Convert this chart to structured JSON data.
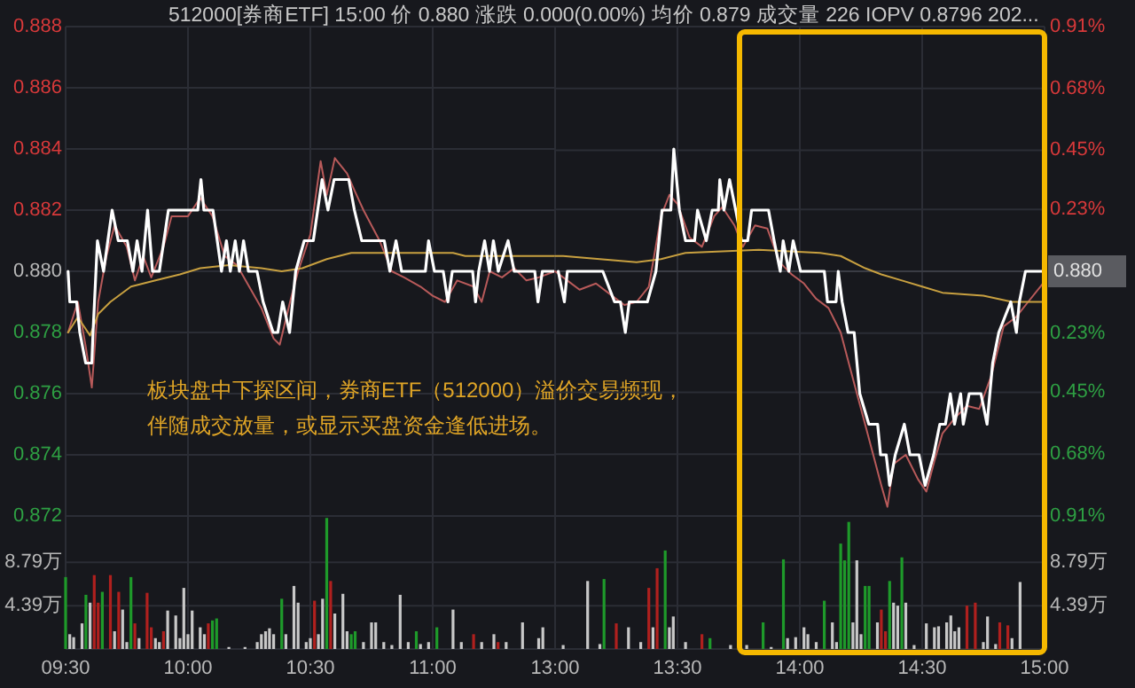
{
  "chart_data": [
    {
      "type": "line",
      "title": "512000[券商ETF] 15:00 价 0.880 涨跌 0.000(0.00%) 均价 0.879 成交量 226 IOPV 0.8796 202...",
      "annotations": [
        "板块盘中下探区间，券商ETF（512000）溢价交易频现，",
        "伴随成交放量，或显示买盘资金逢低进场。"
      ],
      "xlim": [
        9.5,
        11.5
      ],
      "xticks": [
        {
          "value": 9.5,
          "label": null
        },
        {
          "value": 10,
          "label": null
        },
        {
          "value": 10.5,
          "label": null
        },
        {
          "value": 11,
          "label": null
        }
      ],
      "tick_labels": "y",
      "grid": true,
      "ylim": [
        0.872,
        0.888
      ],
      "yticks": [
        0.872,
        0.874,
        0.876,
        0.878,
        {
          "value": 0.88,
          "label": "0.880"
        },
        0.882,
        0.884,
        0.886,
        0.888
      ],
      "series": [
        {
          "color": "#b85a5a",
          "x": [
            9.51,
            9.55,
            9.583,
            9.607,
            9.633,
            9.667,
            9.7,
            9.75,
            9.783,
            9.817,
            9.85,
            9.9,
            9.933,
            10,
            10.05,
            10.1,
            10.15,
            10.2,
            10.25,
            10.3,
            10.35,
            10.375,
            10.417,
            10.45,
            10.5,
            10.542,
            10.567,
            10.6,
            10.65,
            10.683,
            10.717,
            10.783,
            10.833,
            10.883,
            10.95,
            11,
            11.05,
            11.1,
            11.167,
            11.2,
            11.233,
            11.283,
            11.333,
            11.383,
            11.433,
            11.5
          ],
          "values": [
            0.878,
            0.879,
            0.8775,
            0.8762,
            0.879,
            0.8805,
            0.8815,
            0.8808,
            0.8797,
            0.8805,
            0.8798,
            0.8808,
            0.8818,
            0.8818,
            0.8824,
            0.8818,
            0.8805,
            0.8802,
            0.8795,
            0.8788,
            0.8778,
            0.8776,
            0.879,
            0.88,
            0.8812,
            0.8836,
            0.8825,
            0.8837,
            0.8832,
            0.8826,
            0.882,
            0.881,
            0.88,
            0.8798,
            0.8795,
            0.8792,
            0.879,
            0.8797,
            0.8795,
            0.879,
            0.88,
            0.8798,
            0.8801,
            0.8797,
            0.8798,
            0.88
          ]
        },
        {
          "color": "#c8a040",
          "x": [
            9.51,
            9.55,
            9.6,
            9.633,
            9.683,
            9.767,
            9.867,
            9.967,
            10.05,
            10.167,
            10.3,
            10.383,
            10.467,
            10.567,
            10.667,
            11,
            11.083,
            11.133,
            11.5
          ],
          "values": [
            0.878,
            0.8785,
            0.8779,
            0.8786,
            0.879,
            0.8795,
            0.8797,
            0.8799,
            0.8801,
            0.8802,
            0.8801,
            0.88,
            0.8801,
            0.8804,
            0.8806,
            0.8806,
            0.8806,
            0.8805,
            0.8805
          ]
        },
        {
          "color": "#ffffff",
          "x": [
            9.51,
            9.517,
            9.545,
            9.558,
            9.582,
            9.607,
            9.612,
            9.63,
            9.655,
            9.69,
            9.715,
            9.752,
            9.775,
            9.792,
            9.812,
            9.835,
            9.855,
            9.883,
            9.92,
            10.04,
            10.053,
            10.065,
            10.102,
            10.137,
            10.157,
            10.173,
            10.193,
            10.21,
            10.227,
            10.247,
            10.282,
            10.307,
            10.348,
            10.367,
            10.387,
            10.415,
            10.44,
            10.475,
            10.512,
            10.548,
            10.572,
            10.597,
            10.657,
            10.68,
            10.71,
            10.802,
            10.825,
            10.85,
            10.873,
            10.97,
            10.983,
            11.007,
            11.043,
            11.062,
            11.08,
            11.163,
            11.175,
            11.188,
            11.212,
            11.232,
            11.248,
            11.268,
            11.308,
            11.333,
            11.417,
            11.43,
            11.448,
            11.5
          ],
          "values": [
            0.88,
            0.879,
            0.879,
            0.878,
            0.877,
            0.877,
            0.878,
            0.881,
            0.88,
            0.882,
            0.881,
            0.881,
            0.88,
            0.881,
            0.88,
            0.882,
            0.88,
            0.88,
            0.882,
            0.882,
            0.883,
            0.882,
            0.882,
            0.88,
            0.881,
            0.88,
            0.881,
            0.88,
            0.881,
            0.88,
            0.88,
            0.879,
            0.878,
            0.878,
            0.879,
            0.878,
            0.88,
            0.881,
            0.881,
            0.883,
            0.882,
            0.883,
            0.883,
            0.882,
            0.881,
            0.881,
            0.88,
            0.881,
            0.88,
            0.88,
            0.881,
            0.88,
            0.88,
            0.879,
            0.88,
            0.88,
            0.879,
            0.88,
            0.881,
            0.88,
            0.881,
            0.88,
            0.881,
            0.88,
            0.88,
            0.879,
            0.88,
            0.88
          ]
        }
      ]
    },
    {
      "type": "line",
      "xlim": [
        13,
        15
      ],
      "xticks": [
        {
          "value": 13,
          "label": null
        },
        {
          "value": 13.5,
          "label": null
        },
        {
          "value": 14,
          "label": null
        },
        {
          "value": 14.5,
          "label": null
        },
        {
          "value": 15,
          "label": null
        }
      ],
      "tick_labels": "y",
      "grid": true,
      "ylim": [
        0.872,
        0.888
      ],
      "y2lim": [
        -0.91,
        0.91
      ],
      "y2ticks": [
        {
          "value": -0.91,
          "label": "0.91%"
        },
        {
          "value": -0.68,
          "label": "0.68%"
        },
        {
          "value": -0.45,
          "label": "0.45%"
        },
        {
          "value": -0.23,
          "label": "0.23%"
        },
        {
          "value": 0.23,
          "label": "0.23%"
        },
        {
          "value": 0.45,
          "label": "0.45%"
        },
        {
          "value": 0.68,
          "label": "0.68%"
        },
        {
          "value": 0.91,
          "label": "0.91%"
        }
      ],
      "ref_lines": [
        {
          "axis": "y",
          "value": 0.88,
          "label": "0.880",
          "color": "#3a3c44"
        }
      ],
      "series": [
        {
          "color": "#b85a5a",
          "x": [
            13,
            13.05,
            13.1,
            13.167,
            13.233,
            13.283,
            13.333,
            13.383,
            13.433,
            13.467,
            13.5,
            13.55,
            13.6,
            13.65,
            13.683,
            13.733,
            13.767,
            13.817,
            13.867,
            13.917,
            13.967,
            14.017,
            14.067,
            14.117,
            14.167,
            14.2,
            14.25,
            14.3,
            14.333,
            14.358,
            14.383,
            14.433,
            14.483,
            14.517,
            14.55,
            14.583,
            14.633,
            14.683,
            14.733,
            14.783,
            14.833,
            14.883,
            14.933,
            14.993
          ],
          "values": [
            0.88,
            0.8797,
            0.8794,
            0.8796,
            0.8792,
            0.8789,
            0.879,
            0.8795,
            0.8818,
            0.8825,
            0.8822,
            0.8811,
            0.8808,
            0.8818,
            0.8821,
            0.8815,
            0.8808,
            0.8815,
            0.8814,
            0.8803,
            0.8799,
            0.8796,
            0.8791,
            0.8788,
            0.878,
            0.877,
            0.8755,
            0.874,
            0.873,
            0.8723,
            0.8737,
            0.874,
            0.8732,
            0.8728,
            0.8738,
            0.8747,
            0.8752,
            0.8756,
            0.8755,
            0.8766,
            0.8782,
            0.8785,
            0.879,
            0.8796
          ]
        },
        {
          "color": "#c8a040",
          "x": [
            13,
            13.033,
            13.333,
            13.433,
            13.533,
            13.833,
            14.083,
            14.167,
            14.267,
            14.333,
            14.417,
            14.5,
            14.583,
            14.75,
            14.867,
            15
          ],
          "values": [
            0.8805,
            0.8805,
            0.8803,
            0.8804,
            0.8806,
            0.8807,
            0.8806,
            0.8805,
            0.8801,
            0.8799,
            0.8797,
            0.8795,
            0.8793,
            0.8792,
            0.879,
            0.879
          ]
        },
        {
          "color": "#ffffff",
          "x": [
            13.013,
            13.038,
            13.05,
            13.195,
            13.243,
            13.267,
            13.287,
            13.303,
            13.377,
            13.412,
            13.437,
            13.473,
            13.485,
            13.508,
            13.533,
            13.57,
            13.582,
            13.618,
            13.642,
            13.667,
            13.673,
            13.69,
            13.713,
            13.738,
            13.762,
            13.787,
            13.803,
            13.872,
            13.895,
            13.92,
            13.932,
            13.955,
            13.973,
            14.003,
            14.1,
            14.113,
            14.148,
            14.157,
            14.173,
            14.197,
            14.222,
            14.245,
            14.282,
            14.318,
            14.33,
            14.353,
            14.367,
            14.39,
            14.427,
            14.45,
            14.487,
            14.512,
            14.547,
            14.572,
            14.595,
            14.615,
            14.632,
            14.657,
            14.668,
            14.692,
            14.74,
            14.765,
            14.788,
            14.813,
            14.862,
            14.885,
            14.897,
            14.922,
            14.993
          ],
          "values": [
            0.88,
            0.879,
            0.88,
            0.88,
            0.879,
            0.879,
            0.878,
            0.879,
            0.879,
            0.88,
            0.882,
            0.882,
            0.884,
            0.882,
            0.881,
            0.881,
            0.882,
            0.881,
            0.882,
            0.882,
            0.883,
            0.882,
            0.883,
            0.882,
            0.881,
            0.881,
            0.882,
            0.882,
            0.881,
            0.88,
            0.881,
            0.88,
            0.881,
            0.88,
            0.88,
            0.879,
            0.879,
            0.88,
            0.879,
            0.878,
            0.878,
            0.876,
            0.875,
            0.875,
            0.874,
            0.874,
            0.873,
            0.874,
            0.875,
            0.874,
            0.874,
            0.873,
            0.874,
            0.875,
            0.875,
            0.876,
            0.875,
            0.876,
            0.875,
            0.876,
            0.876,
            0.875,
            0.877,
            0.878,
            0.879,
            0.878,
            0.879,
            0.88,
            0.88
          ]
        }
      ]
    },
    {
      "type": "bar",
      "xlim": [
        9.5,
        11.5
      ],
      "grid": true,
      "xticks": [
        {
          "value": 9.5,
          "label": "09:30"
        },
        {
          "value": 10,
          "label": "10:00"
        },
        {
          "value": 10.5,
          "label": "10:30"
        },
        {
          "value": 11,
          "label": "11:00"
        }
      ],
      "ylim": [
        0,
        13.5
      ],
      "yticks": [
        {
          "value": 4.39,
          "label": "4.39万"
        },
        {
          "value": 8.79,
          "label": "8.79万"
        }
      ],
      "series": [
        {
          "color": "#c8c8c8",
          "x": [
            9.517,
            9.533,
            9.567,
            9.6,
            9.7,
            9.733,
            9.75,
            9.8,
            9.867,
            9.883,
            9.917,
            9.95,
            9.967,
            9.983,
            10,
            10.017,
            10.05,
            10.067,
            10.167,
            10.233,
            10.283,
            10.3,
            10.317,
            10.333,
            10.35,
            10.4,
            10.433,
            10.45,
            10.483,
            10.5,
            10.533,
            10.55,
            10.6,
            10.633,
            10.65,
            10.717,
            10.75,
            10.767,
            10.8,
            10.833,
            10.867,
            10.9,
            10.95,
            10.983,
            11.083,
            11.117,
            11.2,
            11.25,
            11.3,
            11.367,
            11.433,
            11.45
          ],
          "values": [
            1.5,
            1.2,
            2.6,
            4.7,
            1.8,
            4.0,
            0.7,
            1.1,
            1.1,
            0.7,
            3.9,
            3.4,
            1.1,
            6.2,
            1.5,
            3.9,
            2.2,
            1.5,
            0.2,
            0.2,
            0.7,
            1.5,
            1.8,
            2.1,
            1.5,
            1.5,
            6.4,
            4.7,
            0.7,
            1.1,
            1.5,
            5.1,
            3.6,
            5.6,
            1.8,
            0.7,
            2.7,
            2.7,
            0.7,
            0.4,
            5.5,
            0.7,
            0.5,
            0.7,
            4.0,
            0.7,
            0.7,
            1.5,
            0.7,
            2.7,
            1.1,
            2.2
          ]
        },
        {
          "color": "#b0201e",
          "x": [
            9.617,
            9.633,
            9.683,
            9.717,
            9.783,
            9.833,
            9.85,
            9.9,
            10.083,
            10.517,
            10.583,
            11.167,
            11.267
          ],
          "values": [
            7.5,
            4.7,
            7.5,
            5.8,
            2.6,
            5.7,
            2.2,
            1.8,
            2.6,
            4.9,
            6.9,
            1.5,
            0.7
          ]
        },
        {
          "color": "#1e9a2a",
          "x": [
            9.5,
            9.583,
            9.65,
            9.767,
            10.1,
            10.117,
            10.383,
            10.567,
            10.667,
            10.683,
            10.933,
            11.017
          ],
          "values": [
            7.3,
            5.5,
            5.8,
            7.3,
            2.9,
            3.1,
            5.1,
            13.3,
            1.5,
            1.8,
            1.8,
            2.2
          ]
        }
      ]
    },
    {
      "type": "bar",
      "xlim": [
        13,
        15
      ],
      "grid": true,
      "xticks": [
        {
          "value": 13,
          "label": "13:00"
        },
        {
          "value": 13.5,
          "label": "13:30"
        },
        {
          "value": 14,
          "label": "14:00"
        },
        {
          "value": 14.5,
          "label": "14:30"
        },
        {
          "value": 15,
          "label": "15:00"
        }
      ],
      "y2lim": [
        0,
        13.5
      ],
      "y2ticks": [
        {
          "value": 4.39,
          "label": "4.39万"
        },
        {
          "value": 8.79,
          "label": "8.79万"
        }
      ],
      "series": [
        {
          "color": "#c8c8c8",
          "axis": "y2",
          "x": [
            13.033,
            13.133,
            13.183,
            13.3,
            13.35,
            13.4,
            13.467,
            13.483,
            13.533,
            13.717,
            13.783,
            13.883,
            13.95,
            13.983,
            14.017,
            14.033,
            14.067,
            14.133,
            14.15,
            14.217,
            14.233,
            14.25,
            14.317,
            14.383,
            14.4,
            14.433,
            14.467,
            14.517,
            14.55,
            14.567,
            14.6,
            14.617,
            14.633,
            14.65,
            14.75,
            14.767,
            14.8,
            14.867,
            14.9
          ],
          "values": [
            0.4,
            6.9,
            0.5,
            2.2,
            0.7,
            2.2,
            2.2,
            3.3,
            0.7,
            0.4,
            0.4,
            0.2,
            1.1,
            1.2,
            2.2,
            1.5,
            0.7,
            2.7,
            0.7,
            2.7,
            9.0,
            1.5,
            2.7,
            4.7,
            4.4,
            4.7,
            0.4,
            2.6,
            2.2,
            2.3,
            2.7,
            3.4,
            1.8,
            2.2,
            0.7,
            3.3,
            0.5,
            1.1,
            6.8
          ]
        },
        {
          "color": "#b0201e",
          "axis": "y2",
          "x": [
            13.25,
            13.383,
            13.417,
            13.6,
            14.333,
            14.35,
            14.683,
            14.717,
            14.817,
            14.85
          ],
          "values": [
            2.6,
            6.2,
            8.2,
            1.5,
            4.0,
            1.8,
            4.4,
            4.7,
            2.7,
            2.4
          ]
        },
        {
          "color": "#1e9a2a",
          "axis": "y2",
          "x": [
            13.2,
            13.45,
            13.633,
            13.85,
            13.933,
            14.1,
            14.167,
            14.183,
            14.2,
            14.267,
            14.283,
            14.367,
            14.417
          ],
          "values": [
            7.1,
            10.0,
            1.1,
            2.7,
            9.1,
            4.9,
            10.7,
            9.0,
            12.9,
            6.4,
            6.4,
            6.9,
            9.3
          ]
        }
      ]
    }
  ]
}
